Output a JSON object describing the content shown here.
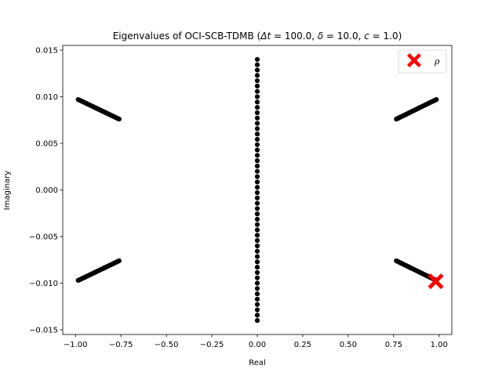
{
  "chart_data": {
    "type": "scatter",
    "title": "Eigenvalues of OCI-SCB-TDMB (Δt = 100.0, δ = 10.0, c = 1.0)",
    "title_parts": [
      "Eigenvalues of OCI-SCB-TDMB (",
      "Δt",
      " = 100.0, ",
      "δ",
      " = 10.0, ",
      "c",
      " = 1.0)"
    ],
    "xlabel": "Real",
    "ylabel": "Imaginary",
    "xlim": [
      -1.07,
      1.07
    ],
    "ylim": [
      -0.0155,
      0.0155
    ],
    "xticks": [
      -1.0,
      -0.75,
      -0.5,
      -0.25,
      0.0,
      0.25,
      0.5,
      0.75,
      1.0
    ],
    "xtick_labels": [
      "−1.00",
      "−0.75",
      "−0.50",
      "−0.25",
      "0.00",
      "0.25",
      "0.50",
      "0.75",
      "1.00"
    ],
    "yticks": [
      -0.015,
      -0.01,
      -0.005,
      0.0,
      0.005,
      0.01,
      0.015
    ],
    "ytick_labels": [
      "−0.015",
      "−0.010",
      "−0.005",
      "0.000",
      "0.005",
      "0.010",
      "0.015"
    ],
    "grid": false,
    "legend": {
      "position": "upper-right",
      "entries": [
        {
          "label": "ρ",
          "marker": "X",
          "color": "#ff0000"
        }
      ]
    },
    "series": [
      {
        "marker": "circle",
        "color": "#000000",
        "segments": [
          {
            "from": [
              0.0,
              -0.014
            ],
            "to": [
              0.0,
              0.014
            ]
          },
          {
            "from": [
              -0.985,
              0.0097
            ],
            "to": [
              -0.76,
              0.0076
            ]
          },
          {
            "from": [
              -0.985,
              -0.0097
            ],
            "to": [
              -0.76,
              -0.0076
            ]
          },
          {
            "from": [
              0.765,
              0.0076
            ],
            "to": [
              0.985,
              0.0097
            ]
          },
          {
            "from": [
              0.765,
              -0.0076
            ],
            "to": [
              0.985,
              -0.0097
            ]
          }
        ]
      },
      {
        "name": "ρ",
        "marker": "X",
        "color": "#ff0000",
        "points": [
          [
            0.982,
            -0.0098
          ]
        ]
      }
    ]
  }
}
